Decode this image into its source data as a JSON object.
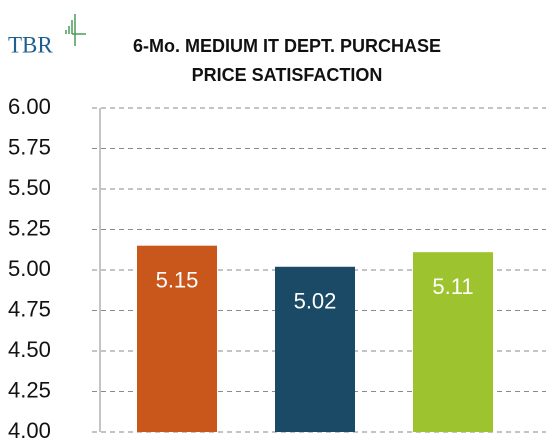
{
  "logo": "TBR",
  "chart_data": {
    "type": "bar",
    "title": [
      "6-Mo. MEDIUM  IT DEPT. PURCHASE",
      "PRICE SATISFACTION"
    ],
    "categories": [
      null,
      null,
      null
    ],
    "values": [
      5.15,
      5.02,
      5.11
    ],
    "colors": [
      "#c9561b",
      "#1b4a66",
      "#9dc42f"
    ],
    "ylim": [
      4,
      6
    ],
    "yticks": [
      {
        "value": 4,
        "label": "4.00"
      },
      {
        "value": 4.25,
        "label": "4.25"
      },
      {
        "value": 4.5,
        "label": "4.50"
      },
      {
        "value": 4.75,
        "label": "4.75"
      },
      {
        "value": 5,
        "label": "5.00"
      },
      {
        "value": 5.25,
        "label": "5.25"
      },
      {
        "value": 5.5,
        "label": "5.50"
      },
      {
        "value": 5.75,
        "label": "5.75"
      },
      {
        "value": 6,
        "label": "6.00"
      }
    ],
    "grid": true
  }
}
